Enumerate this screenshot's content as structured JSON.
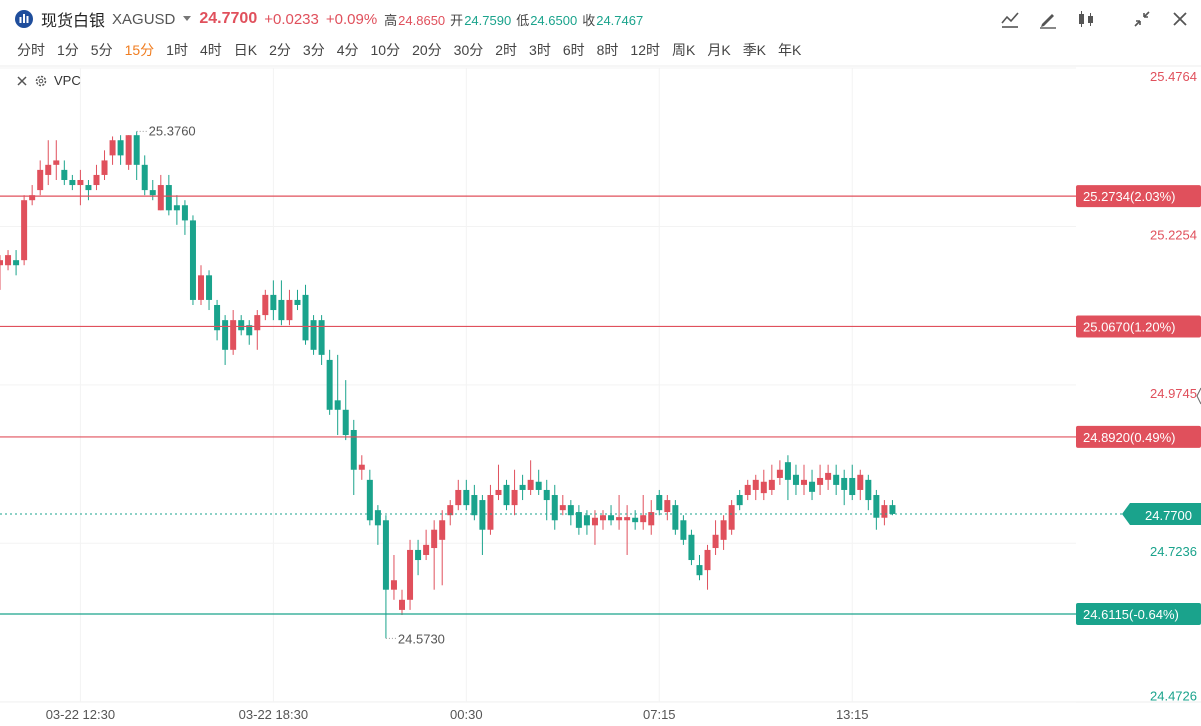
{
  "header": {
    "name": "现货白银",
    "symbol": "XAGUSD",
    "price": "24.7700",
    "price_color": "#e0505c",
    "change": "+0.0233",
    "change_pct": "+0.09%",
    "stats": [
      {
        "label": "高",
        "value": "24.8650",
        "color": "#e0505c"
      },
      {
        "label": "开",
        "value": "24.7590",
        "color": "#1aa38c"
      },
      {
        "label": "低",
        "value": "24.6500",
        "color": "#1aa38c"
      },
      {
        "label": "收",
        "value": "24.7467",
        "color": "#1aa38c"
      }
    ]
  },
  "periods": [
    "分时",
    "1分",
    "5分",
    "15分",
    "1时",
    "4时",
    "日K",
    "2分",
    "3分",
    "4分",
    "10分",
    "20分",
    "30分",
    "2时",
    "3时",
    "6时",
    "8时",
    "12时",
    "周K",
    "月K",
    "季K",
    "年K"
  ],
  "active_period": 3,
  "active_color": "#f07d20",
  "indicator": "VPC",
  "chart_data": {
    "type": "candlestick",
    "up_color": "#e0505c",
    "down_color": "#1aa38c",
    "categories": [
      null,
      null,
      null,
      null,
      null,
      null,
      null,
      null,
      null,
      null,
      "03-22 12:30",
      null,
      null,
      null,
      null,
      null,
      null,
      null,
      null,
      null,
      null,
      null,
      null,
      null,
      null,
      null,
      null,
      null,
      null,
      null,
      null,
      null,
      null,
      null,
      "03-22 18:30",
      null,
      null,
      null,
      null,
      null,
      null,
      null,
      null,
      null,
      null,
      null,
      null,
      null,
      null,
      null,
      null,
      null,
      null,
      null,
      null,
      null,
      null,
      null,
      "00:30",
      null,
      null,
      null,
      null,
      null,
      null,
      null,
      null,
      null,
      null,
      null,
      null,
      null,
      null,
      null,
      null,
      null,
      null,
      null,
      null,
      null,
      null,
      null,
      "07:15",
      null,
      null,
      null,
      null,
      null,
      null,
      null,
      null,
      null,
      null,
      null,
      null,
      null,
      null,
      null,
      null,
      null,
      null,
      null,
      null,
      null,
      null,
      null,
      "13:15",
      null,
      null,
      null,
      null,
      null
    ],
    "ohlc": [
      [
        25.164,
        25.18,
        25.125,
        25.172
      ],
      [
        25.164,
        25.188,
        25.156,
        25.18
      ],
      [
        25.172,
        25.188,
        25.148,
        25.164
      ],
      [
        25.172,
        25.275,
        25.164,
        25.267
      ],
      [
        25.267,
        25.291,
        25.259,
        25.275
      ],
      [
        25.283,
        25.33,
        25.275,
        25.315
      ],
      [
        25.307,
        25.362,
        25.291,
        25.323
      ],
      [
        25.323,
        25.362,
        25.299,
        25.33
      ],
      [
        25.315,
        25.33,
        25.291,
        25.299
      ],
      [
        25.299,
        25.307,
        25.283,
        25.291
      ],
      [
        25.291,
        25.315,
        25.259,
        25.299
      ],
      [
        25.291,
        25.299,
        25.267,
        25.283
      ],
      [
        25.291,
        25.323,
        25.283,
        25.307
      ],
      [
        25.307,
        25.346,
        25.299,
        25.33
      ],
      [
        25.338,
        25.368,
        25.323,
        25.362
      ],
      [
        25.362,
        25.37,
        25.323,
        25.338
      ],
      [
        25.323,
        25.37,
        25.315,
        25.37
      ],
      [
        25.37,
        25.376,
        25.299,
        25.323
      ],
      [
        25.323,
        25.338,
        25.275,
        25.283
      ],
      [
        25.283,
        25.299,
        25.267,
        25.275
      ],
      [
        25.251,
        25.307,
        25.251,
        25.291
      ],
      [
        25.291,
        25.307,
        25.243,
        25.251
      ],
      [
        25.259,
        25.275,
        25.228,
        25.251
      ],
      [
        25.259,
        25.267,
        25.212,
        25.235
      ],
      [
        25.235,
        25.243,
        25.101,
        25.109
      ],
      [
        25.109,
        25.164,
        25.101,
        25.148
      ],
      [
        25.148,
        25.156,
        25.093,
        25.109
      ],
      [
        25.101,
        25.109,
        25.045,
        25.061
      ],
      [
        25.077,
        25.085,
        25.006,
        25.03
      ],
      [
        25.03,
        25.093,
        25.022,
        25.077
      ],
      [
        25.077,
        25.085,
        25.053,
        25.061
      ],
      [
        25.069,
        25.077,
        25.038,
        25.053
      ],
      [
        25.061,
        25.093,
        25.03,
        25.085
      ],
      [
        25.085,
        25.125,
        25.077,
        25.117
      ],
      [
        25.117,
        25.14,
        25.077,
        25.093
      ],
      [
        25.109,
        25.14,
        25.069,
        25.077
      ],
      [
        25.077,
        25.125,
        25.069,
        25.109
      ],
      [
        25.109,
        25.125,
        25.093,
        25.101
      ],
      [
        25.117,
        25.133,
        25.038,
        25.045
      ],
      [
        25.077,
        25.085,
        25.022,
        25.03
      ],
      [
        25.077,
        25.085,
        25.006,
        25.022
      ],
      [
        25.014,
        25.03,
        24.927,
        24.935
      ],
      [
        24.95,
        25.022,
        24.895,
        24.935
      ],
      [
        24.935,
        24.982,
        24.887,
        24.895
      ],
      [
        24.903,
        24.919,
        24.8,
        24.84
      ],
      [
        24.84,
        24.863,
        24.824,
        24.848
      ],
      [
        24.824,
        24.84,
        24.752,
        24.76
      ],
      [
        24.776,
        24.784,
        24.721,
        24.752
      ],
      [
        24.76,
        24.768,
        24.573,
        24.65
      ],
      [
        24.65,
        24.705,
        24.634,
        24.665
      ],
      [
        24.618,
        24.65,
        24.61,
        24.634
      ],
      [
        24.634,
        24.729,
        24.618,
        24.713
      ],
      [
        24.713,
        24.729,
        24.673,
        24.697
      ],
      [
        24.705,
        24.745,
        24.697,
        24.721
      ],
      [
        24.716,
        24.76,
        24.65,
        24.745
      ],
      [
        24.729,
        24.776,
        24.657,
        24.76
      ],
      [
        24.768,
        24.792,
        24.752,
        24.784
      ],
      [
        24.784,
        24.824,
        24.776,
        24.808
      ],
      [
        24.808,
        24.824,
        24.776,
        24.784
      ],
      [
        24.8,
        24.816,
        24.76,
        24.768
      ],
      [
        24.792,
        24.8,
        24.705,
        24.745
      ],
      [
        24.745,
        24.816,
        24.737,
        24.8
      ],
      [
        24.8,
        24.848,
        24.792,
        24.808
      ],
      [
        24.816,
        24.824,
        24.776,
        24.784
      ],
      [
        24.784,
        24.84,
        24.768,
        24.808
      ],
      [
        24.816,
        24.832,
        24.792,
        24.808
      ],
      [
        24.808,
        24.855,
        24.8,
        24.824
      ],
      [
        24.821,
        24.84,
        24.8,
        24.808
      ],
      [
        24.808,
        24.824,
        24.76,
        24.792
      ],
      [
        24.8,
        24.816,
        24.745,
        24.76
      ],
      [
        24.776,
        24.8,
        24.768,
        24.784
      ],
      [
        24.784,
        24.792,
        24.752,
        24.768
      ],
      [
        24.773,
        24.784,
        24.737,
        24.748
      ],
      [
        24.768,
        24.776,
        24.737,
        24.752
      ],
      [
        24.752,
        24.776,
        24.721,
        24.764
      ],
      [
        24.76,
        24.776,
        24.745,
        24.768
      ],
      [
        24.768,
        24.784,
        24.752,
        24.76
      ],
      [
        24.76,
        24.8,
        24.745,
        24.765
      ],
      [
        24.76,
        24.784,
        24.705,
        24.765
      ],
      [
        24.764,
        24.776,
        24.745,
        24.757
      ],
      [
        24.757,
        24.8,
        24.745,
        24.768
      ],
      [
        24.752,
        24.792,
        24.737,
        24.773
      ],
      [
        24.8,
        24.808,
        24.768,
        24.776
      ],
      [
        24.773,
        24.8,
        24.76,
        24.792
      ],
      [
        24.784,
        24.792,
        24.737,
        24.745
      ],
      [
        24.76,
        24.768,
        24.721,
        24.729
      ],
      [
        24.737,
        24.745,
        24.689,
        24.697
      ],
      [
        24.689,
        24.705,
        24.665,
        24.673
      ],
      [
        24.681,
        24.721,
        24.65,
        24.713
      ],
      [
        24.716,
        24.76,
        24.705,
        24.737
      ],
      [
        24.729,
        24.768,
        24.713,
        24.76
      ],
      [
        24.745,
        24.792,
        24.737,
        24.784
      ],
      [
        24.8,
        24.808,
        24.776,
        24.784
      ],
      [
        24.8,
        24.824,
        24.792,
        24.816
      ],
      [
        24.808,
        24.832,
        24.792,
        24.824
      ],
      [
        24.803,
        24.84,
        24.792,
        24.821
      ],
      [
        24.808,
        24.848,
        24.8,
        24.824
      ],
      [
        24.827,
        24.855,
        24.816,
        24.84
      ],
      [
        24.852,
        24.863,
        24.792,
        24.824
      ],
      [
        24.832,
        24.848,
        24.8,
        24.816
      ],
      [
        24.816,
        24.848,
        24.8,
        24.824
      ],
      [
        24.821,
        24.84,
        24.792,
        24.805
      ],
      [
        24.816,
        24.848,
        24.8,
        24.827
      ],
      [
        24.824,
        24.848,
        24.808,
        24.835
      ],
      [
        24.832,
        24.848,
        24.8,
        24.816
      ],
      [
        24.827,
        24.84,
        24.784,
        24.808
      ],
      [
        24.827,
        24.848,
        24.792,
        24.8
      ],
      [
        24.808,
        24.84,
        24.792,
        24.832
      ],
      [
        24.824,
        24.832,
        24.776,
        24.792
      ],
      [
        24.8,
        24.808,
        24.745,
        24.764
      ],
      [
        24.764,
        24.792,
        24.752,
        24.784
      ],
      [
        24.784,
        24.792,
        24.768,
        24.77
      ]
    ],
    "ylim": [
      24.4726,
      25.4764
    ],
    "yticks": [
      25.4764,
      25.2254,
      24.9745,
      24.7236,
      24.4726
    ],
    "grid": true,
    "price_lines": [
      {
        "value": 25.2734,
        "label": "25.2734(2.03%)",
        "color": "#e0505c"
      },
      {
        "value": 25.067,
        "label": "25.0670(1.20%)",
        "color": "#e0505c"
      },
      {
        "value": 24.892,
        "label": "24.8920(0.49%)",
        "color": "#e0505c"
      },
      {
        "value": 24.6115,
        "label": "24.6115(-0.64%)",
        "color": "#1aa38c"
      }
    ],
    "current": {
      "value": 24.77,
      "label": "24.7700",
      "color": "#1aa38c"
    },
    "max_label": "25.3760",
    "min_label": "24.5730"
  }
}
